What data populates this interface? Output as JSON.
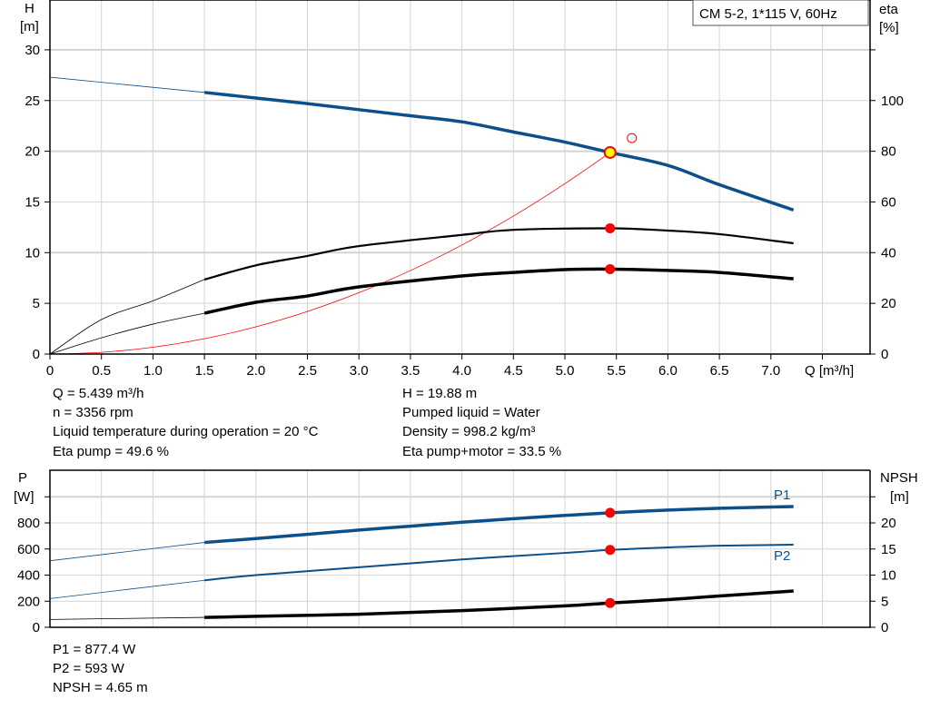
{
  "chart_data": [
    {
      "type": "line",
      "legend_box": "CM 5-2, 1*115 V, 60Hz",
      "xlabel": "Q [m³/h]",
      "ylabel_left": [
        "H",
        "[m]"
      ],
      "ylabel_right": [
        "eta",
        "[%]"
      ],
      "x_ticks": [
        "0",
        "0.5",
        "1.0",
        "1.5",
        "2.0",
        "2.5",
        "3.0",
        "3.5",
        "4.0",
        "4.5",
        "5.0",
        "5.5",
        "6.0",
        "6.5",
        "7.0"
      ],
      "y_left_ticks": [
        "0",
        "5",
        "10",
        "15",
        "20",
        "25",
        "30"
      ],
      "y_right_ticks": [
        "0",
        "20",
        "40",
        "60",
        "80",
        "100"
      ],
      "xlim": [
        0,
        8
      ],
      "ylim_left": [
        0,
        35
      ],
      "ylim_right": [
        0,
        140
      ],
      "grid": true,
      "series": [
        {
          "key": "H",
          "axis": "left",
          "color": "#0c4f8a",
          "x": [
            0,
            1.5,
            2.0,
            2.5,
            3.0,
            3.5,
            4.0,
            4.5,
            5.0,
            5.439,
            6.0,
            6.5,
            7.22
          ],
          "y": [
            27.3,
            25.8,
            25.25,
            24.7,
            24.1,
            23.5,
            22.9,
            21.9,
            20.9,
            19.88,
            18.6,
            16.7,
            14.2
          ]
        },
        {
          "key": "eta_pump",
          "axis": "right",
          "color": "#000000",
          "x": [
            0,
            0.5,
            1.0,
            1.5,
            2.0,
            2.5,
            3.0,
            4.0,
            4.5,
            5.439,
            6.0,
            6.5,
            7.22
          ],
          "y": [
            0,
            13.6,
            21,
            29.4,
            35,
            38.7,
            42.6,
            47,
            49,
            49.6,
            48.7,
            47.3,
            43.7
          ]
        },
        {
          "key": "eta_pump_motor",
          "axis": "right",
          "color": "#000000",
          "x": [
            0,
            0.5,
            1.0,
            1.5,
            2.0,
            2.5,
            3.0,
            4.0,
            4.5,
            5.0,
            5.439,
            6.0,
            6.5,
            7.22
          ],
          "y": [
            0,
            6.4,
            11.8,
            16.1,
            20.4,
            22.9,
            26.5,
            30.8,
            32.2,
            33.3,
            33.5,
            33,
            32.2,
            29.7
          ]
        },
        {
          "key": "system_curve",
          "axis": "left",
          "color": "#ff0000",
          "x": [
            0,
            0.5,
            1.0,
            1.5,
            2.0,
            2.5,
            3.0,
            3.5,
            4.0,
            4.5,
            5.0,
            5.439
          ],
          "y": [
            0,
            0.17,
            0.67,
            1.51,
            2.69,
            4.2,
            6.05,
            8.23,
            10.75,
            13.6,
            16.8,
            19.88
          ]
        }
      ],
      "duty_point": {
        "Q": 5.439,
        "H": 19.88,
        "eta_pump": 49.6,
        "eta_pump_motor": 33.5
      },
      "requested_point": {
        "Q": 5.65,
        "H": 21.3
      }
    },
    {
      "type": "line",
      "ylabel_left": [
        "P",
        "[W]"
      ],
      "ylabel_right": [
        "NPSH",
        "[m]"
      ],
      "y_left_ticks": [
        "0",
        "200",
        "400",
        "600",
        "800"
      ],
      "y_right_ticks": [
        "0",
        "5",
        "10",
        "15",
        "20"
      ],
      "xlim": [
        0,
        8
      ],
      "ylim_left": [
        0,
        1200
      ],
      "ylim_right": [
        0,
        30
      ],
      "grid": true,
      "series": [
        {
          "key": "P1",
          "name": "P1",
          "axis": "left",
          "color": "#0c4f8a",
          "x": [
            0,
            1.5,
            2.0,
            2.5,
            3.0,
            3.5,
            4.0,
            4.5,
            5.0,
            5.439,
            6.0,
            6.5,
            7.0,
            7.22
          ],
          "y": [
            510,
            650,
            680,
            712,
            745,
            775,
            805,
            832,
            857,
            877.4,
            898,
            912,
            922,
            925
          ]
        },
        {
          "key": "P2",
          "name": "P2",
          "axis": "left",
          "color": "#0c4f8a",
          "x": [
            0,
            1.5,
            2.0,
            3.0,
            4.0,
            5.0,
            5.439,
            6.0,
            6.5,
            7.22
          ],
          "y": [
            220,
            360,
            400,
            460,
            520,
            570,
            593,
            612,
            625,
            633
          ]
        },
        {
          "key": "NPSH",
          "axis": "right",
          "color": "#000000",
          "x": [
            0,
            1.5,
            2.0,
            3.0,
            4.0,
            5.0,
            5.439,
            6.0,
            6.5,
            7.22
          ],
          "y": [
            1.5,
            1.9,
            2.1,
            2.5,
            3.2,
            4.1,
            4.65,
            5.3,
            6.0,
            6.95
          ]
        }
      ],
      "duty_point": {
        "Q": 5.439,
        "P1": 877.4,
        "P2": 593,
        "NPSH": 4.65
      }
    }
  ],
  "info": {
    "q": "Q = 5.439 m³/h",
    "n": "n = 3356 rpm",
    "temp": "Liquid temperature during operation = 20 °C",
    "eta_pump": "Eta pump = 49.6 %",
    "h": "H = 19.88 m",
    "liquid": "Pumped liquid = Water",
    "density": "Density = 998.2 kg/m³",
    "eta_pm": "Eta pump+motor = 33.5 %",
    "p1": "P1 = 877.4 W",
    "p2": "P2 = 593 W",
    "npsh": "NPSH = 4.65 m"
  },
  "colors": {
    "blue": "#0c4f8a",
    "red": "#ff0000",
    "yellow": "#ffff00",
    "grid": "#d4d4d4"
  }
}
